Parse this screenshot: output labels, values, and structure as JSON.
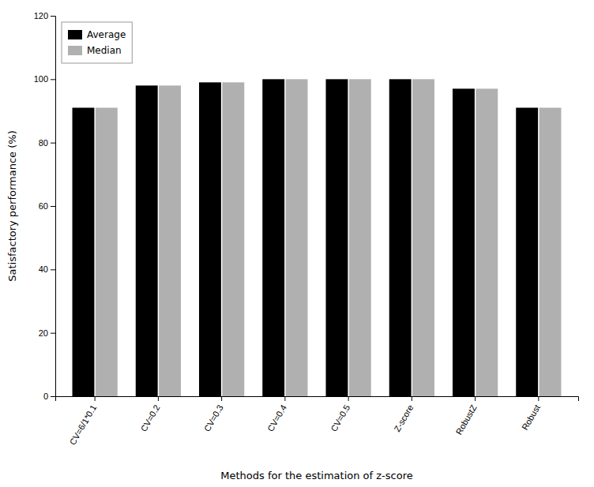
{
  "chart_data": {
    "type": "bar",
    "xlabel": "Methods for the estimation of z-score",
    "ylabel": "Satisfactory performance (%)",
    "categories": [
      "CV=6/1*0.1",
      "CV=0.2",
      "CV=0.3",
      "CV=0.4",
      "CV=0.5",
      "Z-score",
      "RobustZ",
      "Robust"
    ],
    "series": [
      {
        "name": "Average",
        "color": "#000000",
        "values": [
          91,
          98,
          99,
          100,
          100,
          100,
          97,
          91
        ]
      },
      {
        "name": "Median",
        "color": "#b0b0b0",
        "values": [
          91,
          98,
          99,
          100,
          100,
          100,
          97,
          91
        ]
      }
    ],
    "ylim": [
      0,
      120
    ],
    "yticks": [
      0,
      20,
      40,
      60,
      80,
      100,
      120
    ],
    "grid": false,
    "legend": "upper left"
  }
}
